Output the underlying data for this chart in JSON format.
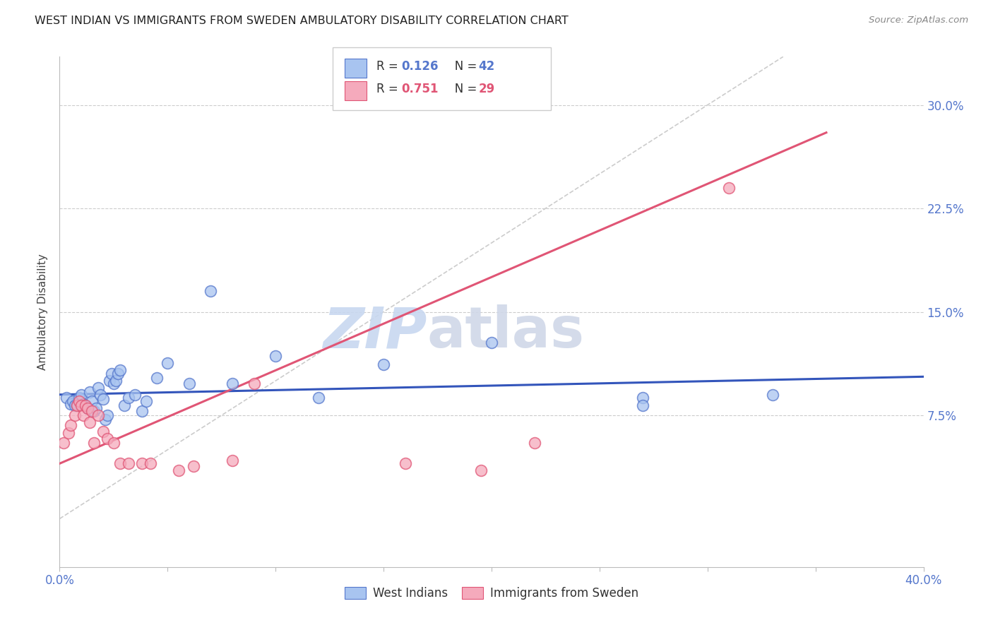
{
  "title": "WEST INDIAN VS IMMIGRANTS FROM SWEDEN AMBULATORY DISABILITY CORRELATION CHART",
  "source": "Source: ZipAtlas.com",
  "ylabel": "Ambulatory Disability",
  "yticks_vals": [
    0.075,
    0.15,
    0.225,
    0.3
  ],
  "yticks_labels": [
    "7.5%",
    "15.0%",
    "22.5%",
    "30.0%"
  ],
  "watermark_zip": "ZIP",
  "watermark_atlas": "atlas",
  "legend_label_blue": "West Indians",
  "legend_label_pink": "Immigrants from Sweden",
  "blue_color": "#A8C4F0",
  "pink_color": "#F5AABC",
  "blue_edge_color": "#5577CC",
  "pink_edge_color": "#E05575",
  "blue_line_color": "#3355BB",
  "pink_line_color": "#E05575",
  "diag_line_color": "#CCCCCC",
  "blue_R": "0.126",
  "blue_N": "42",
  "pink_R": "0.751",
  "pink_N": "29",
  "blue_scatter_x": [
    0.003,
    0.005,
    0.006,
    0.007,
    0.008,
    0.009,
    0.01,
    0.011,
    0.012,
    0.013,
    0.014,
    0.015,
    0.016,
    0.017,
    0.018,
    0.019,
    0.02,
    0.021,
    0.022,
    0.023,
    0.024,
    0.025,
    0.026,
    0.027,
    0.028,
    0.03,
    0.032,
    0.035,
    0.038,
    0.04,
    0.045,
    0.05,
    0.06,
    0.07,
    0.08,
    0.1,
    0.12,
    0.15,
    0.2,
    0.27,
    0.27,
    0.33
  ],
  "blue_scatter_y": [
    0.088,
    0.083,
    0.085,
    0.082,
    0.082,
    0.088,
    0.09,
    0.083,
    0.082,
    0.08,
    0.092,
    0.085,
    0.078,
    0.08,
    0.095,
    0.09,
    0.087,
    0.072,
    0.075,
    0.1,
    0.105,
    0.098,
    0.1,
    0.105,
    0.108,
    0.082,
    0.088,
    0.09,
    0.078,
    0.085,
    0.102,
    0.113,
    0.098,
    0.165,
    0.098,
    0.118,
    0.088,
    0.112,
    0.128,
    0.088,
    0.082,
    0.09
  ],
  "pink_scatter_x": [
    0.002,
    0.004,
    0.005,
    0.007,
    0.008,
    0.009,
    0.01,
    0.011,
    0.012,
    0.013,
    0.014,
    0.015,
    0.016,
    0.018,
    0.02,
    0.022,
    0.025,
    0.028,
    0.032,
    0.038,
    0.042,
    0.055,
    0.062,
    0.08,
    0.09,
    0.16,
    0.195,
    0.22,
    0.31
  ],
  "pink_scatter_y": [
    0.055,
    0.062,
    0.068,
    0.075,
    0.082,
    0.085,
    0.082,
    0.075,
    0.082,
    0.08,
    0.07,
    0.078,
    0.055,
    0.075,
    0.063,
    0.058,
    0.055,
    0.04,
    0.04,
    0.04,
    0.04,
    0.035,
    0.038,
    0.042,
    0.098,
    0.04,
    0.035,
    0.055,
    0.24
  ],
  "xlim": [
    0.0,
    0.4
  ],
  "ylim": [
    -0.035,
    0.335
  ],
  "blue_line_x": [
    0.0,
    0.4
  ],
  "blue_line_y": [
    0.09,
    0.103
  ],
  "pink_line_x": [
    0.0,
    0.355
  ],
  "pink_line_y": [
    0.04,
    0.28
  ],
  "diag_line_x": [
    0.0,
    0.335
  ],
  "diag_line_y": [
    0.0,
    0.335
  ]
}
